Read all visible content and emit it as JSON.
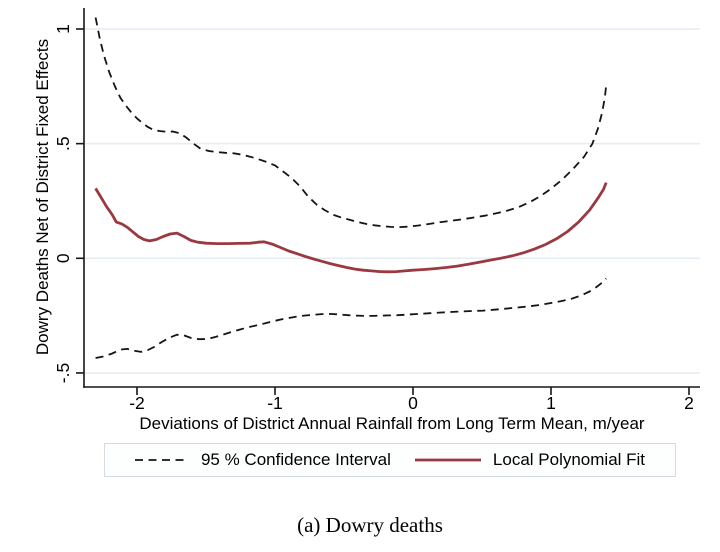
{
  "caption": "(a) Dowry deaths",
  "chart_data": {
    "type": "line",
    "title": "",
    "xlabel": "Deviations of District Annual Rainfall from Long Term Mean, m/year",
    "ylabel": "Dowry Deaths Net of District Fixed Effects",
    "xlim": [
      -2.38,
      2.08
    ],
    "ylim": [
      -0.56,
      1.08
    ],
    "grid": "horizontal",
    "x_ticks": {
      "values": [
        -2,
        -1,
        0,
        1,
        2
      ],
      "labels": [
        "-2",
        "-1",
        "0",
        "1",
        "2"
      ]
    },
    "y_ticks": {
      "values": [
        1,
        0.5,
        0,
        -0.5
      ],
      "labels": [
        "1",
        ".5",
        "0",
        "-.5"
      ]
    },
    "colors": {
      "fit_line": "#9b3940",
      "ci_line": "#141414",
      "gridline": "#e4ecf4",
      "axis": "#161616",
      "legend_border": "#d3dce3"
    },
    "legend": {
      "position": "bottom",
      "entries": [
        {
          "label": "95 % Confidence Interval",
          "style": "dashed",
          "color": "#141414"
        },
        {
          "label": "Local Polynomial Fit",
          "style": "solid",
          "color": "#9b3940"
        }
      ]
    },
    "series": [
      {
        "name": "95 % Confidence Interval (upper)",
        "role": "ci-upper",
        "style": "dashed",
        "color": "#141414",
        "points": [
          [
            -2.3,
            1.05
          ],
          [
            -2.27,
            0.96
          ],
          [
            -2.24,
            0.885
          ],
          [
            -2.2,
            0.81
          ],
          [
            -2.16,
            0.75
          ],
          [
            -2.12,
            0.7
          ],
          [
            -2.08,
            0.665
          ],
          [
            -2.04,
            0.635
          ],
          [
            -2.0,
            0.61
          ],
          [
            -1.96,
            0.59
          ],
          [
            -1.92,
            0.572
          ],
          [
            -1.88,
            0.56
          ],
          [
            -1.84,
            0.555
          ],
          [
            -1.79,
            0.552
          ],
          [
            -1.74,
            0.553
          ],
          [
            -1.69,
            0.545
          ],
          [
            -1.64,
            0.525
          ],
          [
            -1.59,
            0.5
          ],
          [
            -1.54,
            0.478
          ],
          [
            -1.48,
            0.468
          ],
          [
            -1.42,
            0.463
          ],
          [
            -1.36,
            0.46
          ],
          [
            -1.3,
            0.458
          ],
          [
            -1.24,
            0.452
          ],
          [
            -1.18,
            0.443
          ],
          [
            -1.12,
            0.432
          ],
          [
            -1.06,
            0.42
          ],
          [
            -1.0,
            0.405
          ],
          [
            -0.94,
            0.378
          ],
          [
            -0.88,
            0.35
          ],
          [
            -0.82,
            0.315
          ],
          [
            -0.76,
            0.27
          ],
          [
            -0.7,
            0.235
          ],
          [
            -0.64,
            0.21
          ],
          [
            -0.58,
            0.19
          ],
          [
            -0.52,
            0.178
          ],
          [
            -0.46,
            0.168
          ],
          [
            -0.4,
            0.158
          ],
          [
            -0.34,
            0.15
          ],
          [
            -0.28,
            0.144
          ],
          [
            -0.22,
            0.14
          ],
          [
            -0.16,
            0.137
          ],
          [
            -0.1,
            0.136
          ],
          [
            -0.04,
            0.138
          ],
          [
            0.04,
            0.143
          ],
          [
            0.12,
            0.15
          ],
          [
            0.2,
            0.158
          ],
          [
            0.28,
            0.164
          ],
          [
            0.36,
            0.17
          ],
          [
            0.44,
            0.178
          ],
          [
            0.52,
            0.186
          ],
          [
            0.6,
            0.196
          ],
          [
            0.68,
            0.207
          ],
          [
            0.76,
            0.222
          ],
          [
            0.84,
            0.243
          ],
          [
            0.92,
            0.27
          ],
          [
            1.0,
            0.303
          ],
          [
            1.08,
            0.343
          ],
          [
            1.16,
            0.39
          ],
          [
            1.24,
            0.443
          ],
          [
            1.3,
            0.5
          ],
          [
            1.34,
            0.565
          ],
          [
            1.37,
            0.635
          ],
          [
            1.39,
            0.7
          ],
          [
            1.4,
            0.755
          ]
        ]
      },
      {
        "name": "95 % Confidence Interval (lower)",
        "role": "ci-lower",
        "style": "dashed",
        "color": "#141414",
        "points": [
          [
            -2.3,
            -0.435
          ],
          [
            -2.24,
            -0.428
          ],
          [
            -2.18,
            -0.415
          ],
          [
            -2.12,
            -0.398
          ],
          [
            -2.07,
            -0.395
          ],
          [
            -2.02,
            -0.403
          ],
          [
            -1.97,
            -0.408
          ],
          [
            -1.92,
            -0.4
          ],
          [
            -1.87,
            -0.385
          ],
          [
            -1.82,
            -0.365
          ],
          [
            -1.76,
            -0.345
          ],
          [
            -1.71,
            -0.333
          ],
          [
            -1.66,
            -0.336
          ],
          [
            -1.61,
            -0.347
          ],
          [
            -1.55,
            -0.353
          ],
          [
            -1.49,
            -0.352
          ],
          [
            -1.43,
            -0.343
          ],
          [
            -1.37,
            -0.332
          ],
          [
            -1.31,
            -0.32
          ],
          [
            -1.25,
            -0.31
          ],
          [
            -1.19,
            -0.3
          ],
          [
            -1.13,
            -0.292
          ],
          [
            -1.07,
            -0.283
          ],
          [
            -1.01,
            -0.274
          ],
          [
            -0.95,
            -0.266
          ],
          [
            -0.89,
            -0.259
          ],
          [
            -0.83,
            -0.253
          ],
          [
            -0.77,
            -0.249
          ],
          [
            -0.71,
            -0.246
          ],
          [
            -0.65,
            -0.243
          ],
          [
            -0.59,
            -0.243
          ],
          [
            -0.53,
            -0.245
          ],
          [
            -0.47,
            -0.248
          ],
          [
            -0.41,
            -0.25
          ],
          [
            -0.35,
            -0.251
          ],
          [
            -0.29,
            -0.251
          ],
          [
            -0.23,
            -0.25
          ],
          [
            -0.17,
            -0.249
          ],
          [
            -0.11,
            -0.248
          ],
          [
            -0.05,
            -0.246
          ],
          [
            0.03,
            -0.243
          ],
          [
            0.11,
            -0.24
          ],
          [
            0.19,
            -0.237
          ],
          [
            0.27,
            -0.234
          ],
          [
            0.35,
            -0.232
          ],
          [
            0.43,
            -0.23
          ],
          [
            0.51,
            -0.228
          ],
          [
            0.59,
            -0.224
          ],
          [
            0.67,
            -0.22
          ],
          [
            0.75,
            -0.215
          ],
          [
            0.83,
            -0.21
          ],
          [
            0.91,
            -0.204
          ],
          [
            0.99,
            -0.196
          ],
          [
            1.07,
            -0.187
          ],
          [
            1.15,
            -0.176
          ],
          [
            1.22,
            -0.162
          ],
          [
            1.28,
            -0.145
          ],
          [
            1.33,
            -0.125
          ],
          [
            1.37,
            -0.106
          ],
          [
            1.4,
            -0.088
          ]
        ]
      },
      {
        "name": "Local Polynomial Fit",
        "role": "fit",
        "style": "solid",
        "color": "#9b3940",
        "points": [
          [
            -2.3,
            0.305
          ],
          [
            -2.26,
            0.265
          ],
          [
            -2.22,
            0.225
          ],
          [
            -2.18,
            0.19
          ],
          [
            -2.15,
            0.158
          ],
          [
            -2.11,
            0.15
          ],
          [
            -2.07,
            0.135
          ],
          [
            -2.03,
            0.115
          ],
          [
            -1.99,
            0.095
          ],
          [
            -1.95,
            0.082
          ],
          [
            -1.91,
            0.076
          ],
          [
            -1.86,
            0.082
          ],
          [
            -1.81,
            0.095
          ],
          [
            -1.76,
            0.106
          ],
          [
            -1.71,
            0.11
          ],
          [
            -1.66,
            0.095
          ],
          [
            -1.61,
            0.078
          ],
          [
            -1.56,
            0.07
          ],
          [
            -1.5,
            0.066
          ],
          [
            -1.42,
            0.064
          ],
          [
            -1.34,
            0.064
          ],
          [
            -1.26,
            0.065
          ],
          [
            -1.18,
            0.066
          ],
          [
            -1.12,
            0.07
          ],
          [
            -1.08,
            0.072
          ],
          [
            -1.02,
            0.062
          ],
          [
            -0.96,
            0.047
          ],
          [
            -0.9,
            0.032
          ],
          [
            -0.84,
            0.02
          ],
          [
            -0.78,
            0.008
          ],
          [
            -0.72,
            -0.003
          ],
          [
            -0.66,
            -0.013
          ],
          [
            -0.6,
            -0.023
          ],
          [
            -0.54,
            -0.032
          ],
          [
            -0.48,
            -0.04
          ],
          [
            -0.42,
            -0.047
          ],
          [
            -0.36,
            -0.052
          ],
          [
            -0.3,
            -0.055
          ],
          [
            -0.24,
            -0.058
          ],
          [
            -0.18,
            -0.059
          ],
          [
            -0.12,
            -0.058
          ],
          [
            -0.06,
            -0.055
          ],
          [
            0.0,
            -0.052
          ],
          [
            0.08,
            -0.049
          ],
          [
            0.16,
            -0.045
          ],
          [
            0.24,
            -0.04
          ],
          [
            0.32,
            -0.034
          ],
          [
            0.4,
            -0.026
          ],
          [
            0.48,
            -0.017
          ],
          [
            0.56,
            -0.008
          ],
          [
            0.64,
            0.001
          ],
          [
            0.72,
            0.011
          ],
          [
            0.8,
            0.024
          ],
          [
            0.88,
            0.04
          ],
          [
            0.96,
            0.06
          ],
          [
            1.04,
            0.085
          ],
          [
            1.12,
            0.117
          ],
          [
            1.2,
            0.158
          ],
          [
            1.28,
            0.21
          ],
          [
            1.34,
            0.262
          ],
          [
            1.38,
            0.3
          ],
          [
            1.4,
            0.33
          ]
        ]
      }
    ]
  }
}
